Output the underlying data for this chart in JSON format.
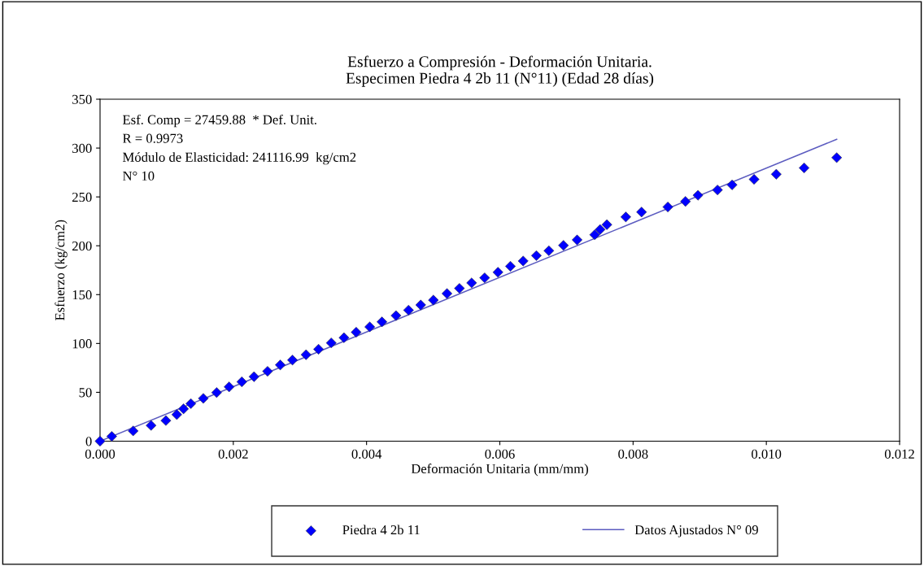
{
  "chart_data": {
    "type": "scatter",
    "title": "Esfuerzo a Compresión - Deformación Unitaria.\nEspecimen Piedra 4 2b 11 (N°11) (Edad 28 días)",
    "xlabel": "Deformación Unitaria (mm/mm)",
    "ylabel": "Esfuerzo (kg/cm2)",
    "annotations": [
      "Esf. Comp = 27459.88  * Def. Unit.",
      "R = 0.9973",
      "Módulo de Elasticidad: 241116.99  kg/cm2",
      "N° 10"
    ],
    "series": [
      {
        "name": "Piedra 4 2b 11",
        "color": "#0000ff",
        "marker": "diamond",
        "x": [
          0,
          0.000176,
          0.000497,
          0.000766,
          0.000988,
          0.001152,
          0.001253,
          0.001363,
          0.00155,
          0.00175,
          0.001937,
          0.002128,
          0.002311,
          0.002514,
          0.002705,
          0.002888,
          0.003092,
          0.003279,
          0.00347,
          0.003661,
          0.003844,
          0.004048,
          0.004231,
          0.004442,
          0.00463,
          0.004813,
          0.005003,
          0.005207,
          0.005394,
          0.005577,
          0.005772,
          0.005972,
          0.006159,
          0.00635,
          0.006549,
          0.006736,
          0.006955,
          0.00716,
          0.007424,
          0.007505,
          0.007607,
          0.007891,
          0.008127,
          0.008522,
          0.008786,
          0.008974,
          0.009267,
          0.009486,
          0.009816,
          0.010149,
          0.010567,
          0.011056
        ],
        "values": [
          0,
          4.9,
          10.5,
          16.1,
          21.1,
          27.2,
          33.1,
          38.4,
          43.8,
          49.8,
          55.6,
          60.7,
          66.0,
          71.5,
          78.0,
          83.0,
          88.5,
          94.1,
          100.6,
          105.9,
          111.5,
          117.0,
          122.1,
          128.5,
          134.1,
          139.4,
          144.4,
          151.1,
          156.4,
          162.0,
          167.2,
          172.9,
          179.0,
          184.4,
          189.9,
          194.9,
          200.4,
          206.0,
          211.3,
          216.6,
          221.6,
          229.5,
          234.5,
          239.7,
          245.4,
          251.7,
          257.1,
          262.3,
          268.0,
          273.2,
          279.7,
          290.2
        ]
      },
      {
        "name": "Datos Ajustados N° 09",
        "type": "line",
        "color": "#5c5cc0",
        "marker": "none",
        "line_style": "solid",
        "x": [
          0,
          0.011056
        ],
        "values": [
          0,
          309
        ]
      }
    ],
    "xlim": [
      0,
      0.012
    ],
    "xticks": [
      {
        "value": 0,
        "label": "0.000"
      },
      {
        "value": 0.002,
        "label": "0.002"
      },
      {
        "value": 0.004,
        "label": "0.004"
      },
      {
        "value": 0.006,
        "label": "0.006"
      },
      {
        "value": 0.008,
        "label": "0.008"
      },
      {
        "value": 0.01,
        "label": "0.010"
      },
      {
        "value": 0.012,
        "label": "0.012"
      }
    ],
    "ylim": [
      0,
      350
    ],
    "yticks": [
      0,
      50,
      100,
      150,
      200,
      250,
      300,
      350
    ],
    "grid": false,
    "legend": "bottom"
  }
}
